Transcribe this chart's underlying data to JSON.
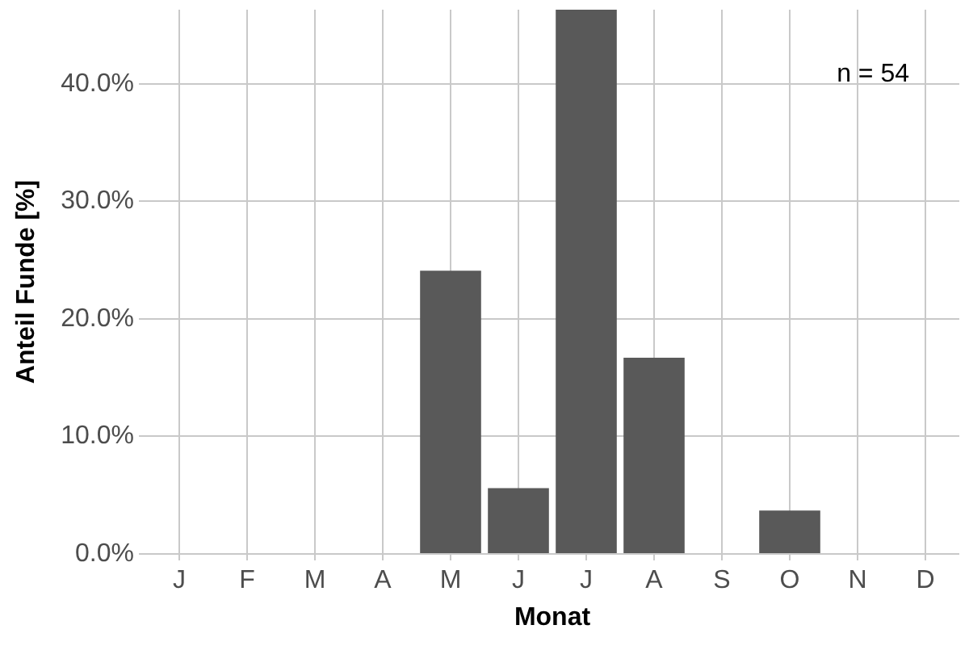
{
  "chart_data": {
    "type": "bar",
    "xlabel": "Monat",
    "ylabel": "Anteil Funde [%]",
    "categories": [
      "J",
      "F",
      "M",
      "A",
      "M",
      "J",
      "J",
      "A",
      "S",
      "O",
      "N",
      "D"
    ],
    "values": [
      0,
      0,
      0,
      0,
      24.1,
      5.6,
      46.3,
      16.7,
      0,
      3.7,
      0,
      0
    ],
    "color": "#595959",
    "ylim": [
      0,
      46.3
    ],
    "yticks": [
      {
        "value": 0,
        "label": "0.0%"
      },
      {
        "value": 10,
        "label": "10.0%"
      },
      {
        "value": 20,
        "label": "20.0%"
      },
      {
        "value": 30,
        "label": "30.0%"
      },
      {
        "value": 40,
        "label": "40.0%"
      }
    ],
    "grid": true,
    "annotations": [
      "n = 54"
    ]
  }
}
